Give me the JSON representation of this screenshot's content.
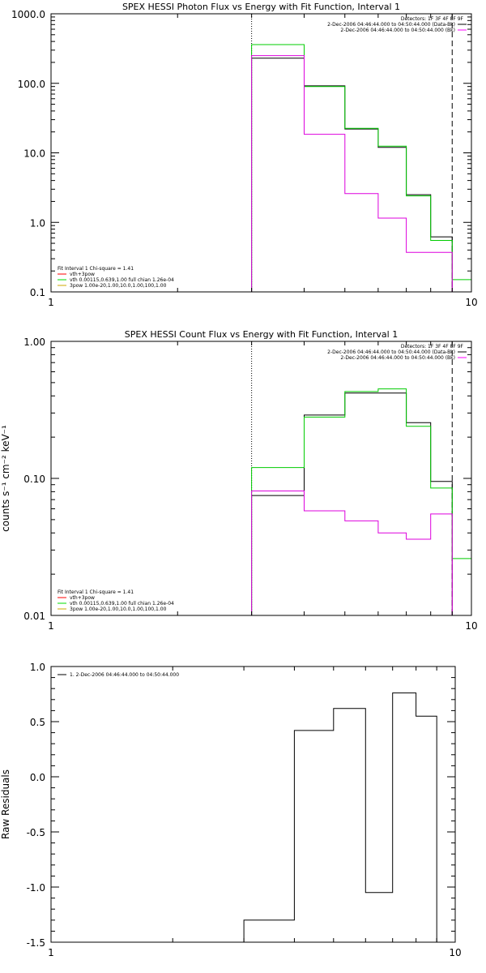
{
  "chart_data": [
    {
      "type": "line",
      "title": "SPEX HESSI Photon Flux vs Energy with Fit Function, Interval 1",
      "xlabel": "",
      "ylabel": "",
      "xscale": "log",
      "yscale": "log",
      "xlim": [
        1,
        10
      ],
      "ylim": [
        0.1,
        1000
      ],
      "xticks": [
        "1",
        "10"
      ],
      "yticks": [
        "0.1",
        "1.0",
        "10.0",
        "100.0",
        "1000.0"
      ],
      "ytick_values": [
        0.1,
        1,
        10,
        100,
        1000
      ],
      "vlines": [
        {
          "x": 3,
          "style": "dotted"
        },
        {
          "x": 9,
          "style": "dashed"
        }
      ],
      "header_lines": [
        {
          "text": "Detectors: 1F 3F 4F 8F 9F",
          "color": ""
        },
        {
          "text": "2-Dec-2006 04:46:44.000 to 04:50:44.000 (Data-Bk)",
          "color": "#000000"
        },
        {
          "text": "2-Dec-2006 04:46:44.000 to 04:50:44.000 (Bk)",
          "color": "#ff00ff"
        }
      ],
      "legend": {
        "placement": "bottom-left",
        "title": "Fit Interval 1    Chi-square = 1.41",
        "entries": [
          {
            "label": "vth+3pow",
            "color": "#ff0000"
          },
          {
            "label": "vth 0.00115,0.639,1.00   full chian 1.26e-04",
            "color": "#00dd00"
          },
          {
            "label": "3pow 1.00e-20,1.00,10.0,1.00,100,1.00",
            "color": "#ccaa00"
          }
        ]
      },
      "edges": [
        3,
        4,
        5,
        6,
        7,
        8,
        9,
        10
      ],
      "series": [
        {
          "color": "#000000",
          "values": [
            230,
            92,
            22,
            12,
            2.5,
            0.62,
            null
          ]
        },
        {
          "color": "#00cc00",
          "values": [
            360,
            90,
            22.5,
            12.5,
            2.4,
            0.55,
            0.15
          ]
        },
        {
          "color": "#dd00dd",
          "values": [
            250,
            18.5,
            2.6,
            1.15,
            0.37,
            0.37,
            null
          ]
        }
      ]
    },
    {
      "type": "line",
      "title": "SPEX HESSI Count Flux vs Energy with Fit Function, Interval 1",
      "xlabel": "",
      "ylabel": "counts s⁻¹ cm⁻² keV⁻¹",
      "xscale": "log",
      "yscale": "log",
      "xlim": [
        1,
        10
      ],
      "ylim": [
        0.01,
        1
      ],
      "xticks": [
        "1",
        "10"
      ],
      "yticks": [
        "0.01",
        "0.10",
        "1.00"
      ],
      "ytick_values": [
        0.01,
        0.1,
        1
      ],
      "vlines": [
        {
          "x": 3,
          "style": "dotted"
        },
        {
          "x": 9,
          "style": "dashed"
        }
      ],
      "header_lines": [
        {
          "text": "Detectors: 1F 3F 4F 8F 9F",
          "color": ""
        },
        {
          "text": "2-Dec-2006 04:46:44.000 to 04:50:44.000 (Data-Bk)",
          "color": "#000000"
        },
        {
          "text": "2-Dec-2006 04:46:44.000 to 04:50:44.000 (Bk)",
          "color": "#ff00ff"
        }
      ],
      "legend": {
        "placement": "bottom-left",
        "title": "Fit Interval 1    Chi-square = 1.41",
        "entries": [
          {
            "label": "vth+3pow",
            "color": "#ff0000"
          },
          {
            "label": "vth 0.00115,0.639,1.00   full chian 1.26e-04",
            "color": "#00dd00"
          },
          {
            "label": "3pow 1.00e-20,1.00,10.0,1.00,100,1.00",
            "color": "#ccaa00"
          }
        ]
      },
      "edges": [
        3,
        4,
        5,
        6,
        7,
        8,
        9,
        10
      ],
      "series": [
        {
          "color": "#000000",
          "values": [
            0.075,
            0.29,
            0.42,
            0.42,
            0.255,
            0.095,
            null
          ]
        },
        {
          "color": "#00cc00",
          "values": [
            0.12,
            0.28,
            0.43,
            0.45,
            0.24,
            0.085,
            0.026
          ]
        },
        {
          "color": "#dd00dd",
          "values": [
            0.081,
            0.058,
            0.049,
            0.04,
            0.036,
            0.055,
            null
          ]
        }
      ]
    },
    {
      "type": "line",
      "title": "",
      "xlabel": "",
      "ylabel": "Raw Residuals",
      "xscale": "log",
      "yscale": "linear",
      "xlim": [
        1,
        10
      ],
      "ylim": [
        -1.5,
        1.0
      ],
      "xticks": [
        "1",
        "10"
      ],
      "yticks": [
        "-1.5",
        "-1.0",
        "-0.5",
        "0.0",
        "0.5",
        "1.0"
      ],
      "ytick_values": [
        -1.5,
        -1.0,
        -0.5,
        0.0,
        0.5,
        1.0
      ],
      "legend": {
        "placement": "top-left",
        "title": "",
        "entries": [
          {
            "label": "1.  2-Dec-2006 04:46:44.000 to 04:50:44.000",
            "color": "#000000"
          }
        ]
      },
      "edges": [
        3,
        4,
        5,
        6,
        7,
        8,
        9
      ],
      "series": [
        {
          "color": "#000000",
          "values": [
            -1.3,
            0.42,
            0.62,
            -1.05,
            0.76,
            0.55
          ]
        }
      ]
    }
  ]
}
